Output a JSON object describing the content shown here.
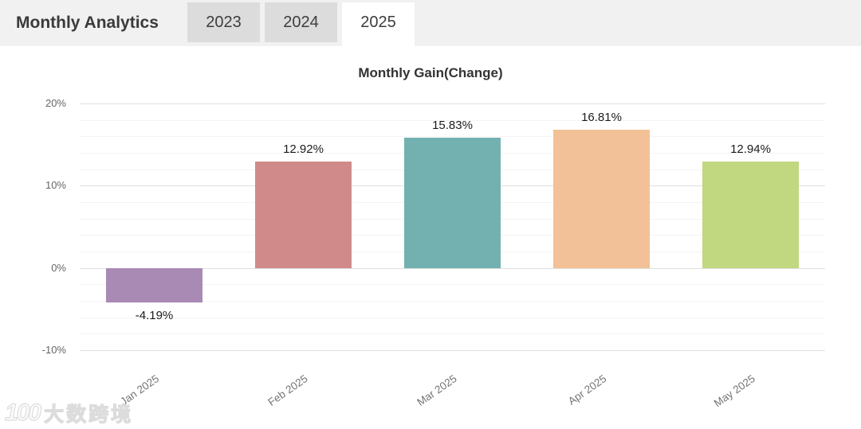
{
  "header": {
    "title": "Monthly Analytics",
    "tabs": [
      {
        "label": "2023",
        "selected": false
      },
      {
        "label": "2024",
        "selected": false
      },
      {
        "label": "2025",
        "selected": true
      }
    ]
  },
  "chart_data": {
    "type": "bar",
    "title": "Monthly Gain(Change)",
    "categories": [
      "Jan 2025",
      "Feb 2025",
      "Mar 2025",
      "Apr 2025",
      "May 2025"
    ],
    "values": [
      -4.19,
      12.92,
      15.83,
      16.81,
      12.94
    ],
    "value_labels": [
      "-4.19%",
      "12.92%",
      "15.83%",
      "16.81%",
      "12.94%"
    ],
    "bar_colors": [
      "#a88ab4",
      "#d18a8a",
      "#73b1b1",
      "#f2c197",
      "#c1d780"
    ],
    "ylim": [
      -10,
      20
    ],
    "y_ticks": [
      "20%",
      "10%",
      "0%",
      "-10%"
    ],
    "y_tick_values": [
      20,
      10,
      0,
      -10
    ],
    "minor_grid_step": 2,
    "grid": true,
    "legend": "none",
    "xlabel": "",
    "ylabel": ""
  },
  "watermark": {
    "logo_text": "100",
    "brand_text": "大数跨境"
  }
}
